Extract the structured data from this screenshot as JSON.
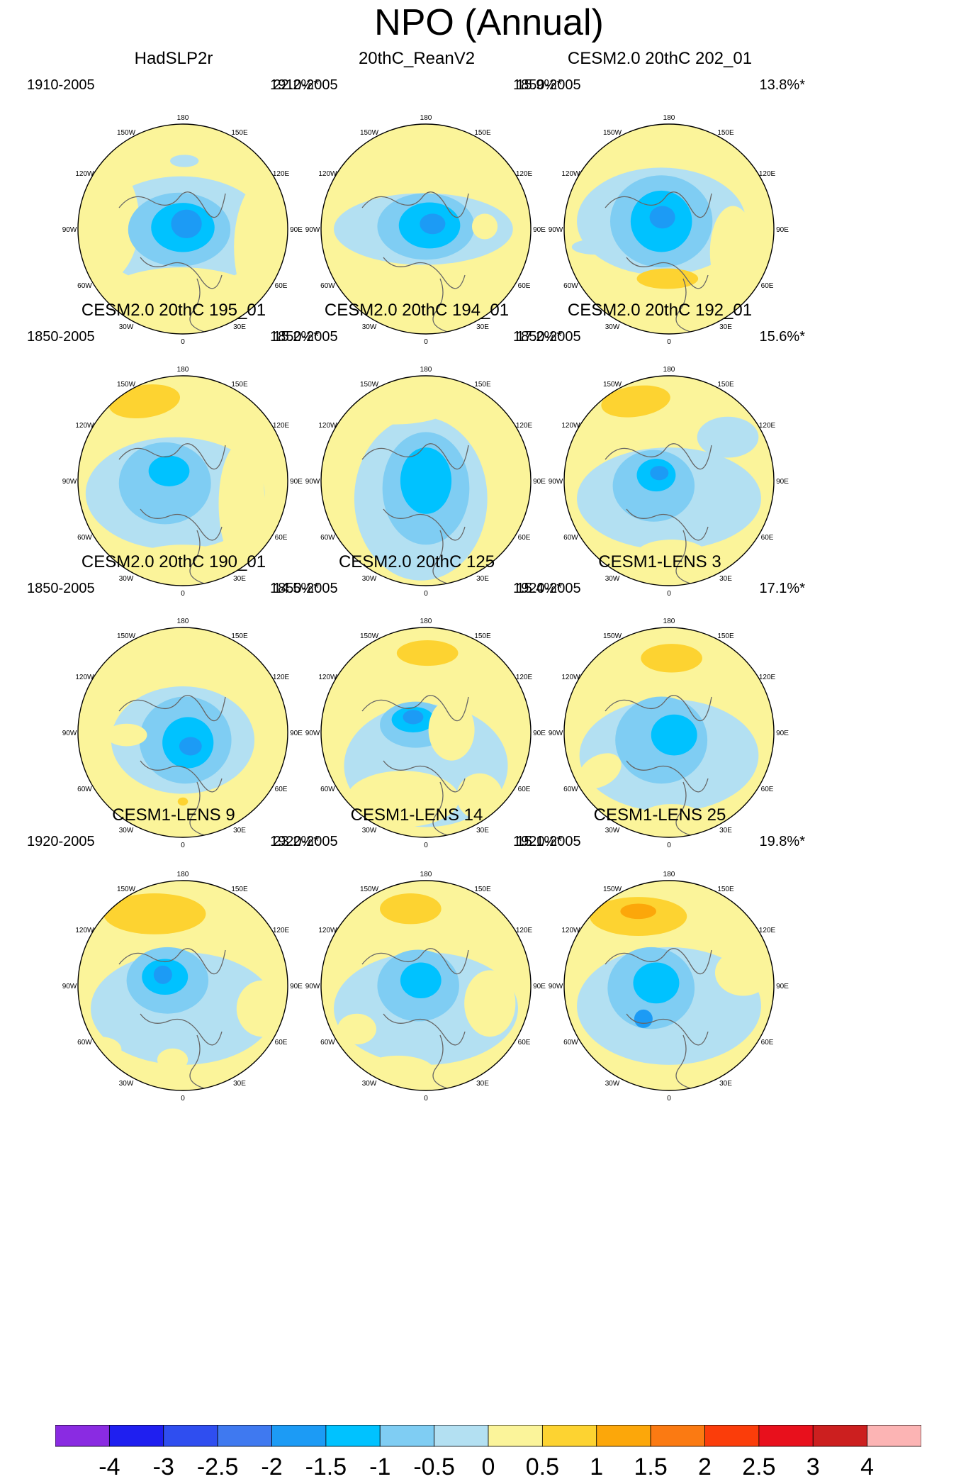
{
  "chart_data": {
    "type": "heatmap",
    "title": "NPO (Annual)",
    "projection": "polar stereographic, Northern Hemisphere",
    "longitude_labels": [
      "180",
      "150E",
      "120E",
      "90E",
      "60E",
      "30E",
      "0",
      "30W",
      "60W",
      "90W",
      "120W",
      "150W"
    ],
    "colorbar": {
      "colors": [
        "#8a2be2",
        "#1f1ff0",
        "#2f4ef0",
        "#3f79f0",
        "#1c9bf5",
        "#00c2ff",
        "#7fcdf3",
        "#b3e0f2",
        "#fbf49a",
        "#fdd331",
        "#fca70a",
        "#fb7a12",
        "#fb3d0a",
        "#e8101c",
        "#cc1f1f",
        "#fcb4b4"
      ],
      "tick_labels": [
        "-4",
        "-3",
        "-2.5",
        "-2",
        "-1.5",
        "-1",
        "-0.5",
        "0",
        "0.5",
        "1",
        "1.5",
        "2",
        "2.5",
        "3",
        "4"
      ]
    },
    "panels": [
      {
        "title": "HadSLP2r",
        "years": "1910-2005",
        "variance": "22.2%*"
      },
      {
        "title": "20thC_ReanV2",
        "years": "1910-2005",
        "variance": "15.9%*"
      },
      {
        "title": "CESM2.0 20thC 202_01",
        "years": "1850-2005",
        "variance": "13.8%*"
      },
      {
        "title": "CESM2.0 20thC 195_01",
        "years": "1850-2005",
        "variance": "15.2%*"
      },
      {
        "title": "CESM2.0 20thC 194_01",
        "years": "1850-2005",
        "variance": "17.2%*"
      },
      {
        "title": "CESM2.0 20thC 192_01",
        "years": "1850-2005",
        "variance": "15.6%*"
      },
      {
        "title": "CESM2.0 20thC 190_01",
        "years": "1850-2005",
        "variance": "14.5%*"
      },
      {
        "title": "CESM2.0 20thC 125",
        "years": "1850-2005",
        "variance": "15.4%*"
      },
      {
        "title": "CESM1-LENS 3",
        "years": "1920-2005",
        "variance": "17.1%*"
      },
      {
        "title": "CESM1-LENS 9",
        "years": "1920-2005",
        "variance": "23.2%*"
      },
      {
        "title": "CESM1-LENS 14",
        "years": "1920-2005",
        "variance": "15.1%*"
      },
      {
        "title": "CESM1-LENS 25",
        "years": "1920-2005",
        "variance": "19.8%*"
      }
    ]
  }
}
